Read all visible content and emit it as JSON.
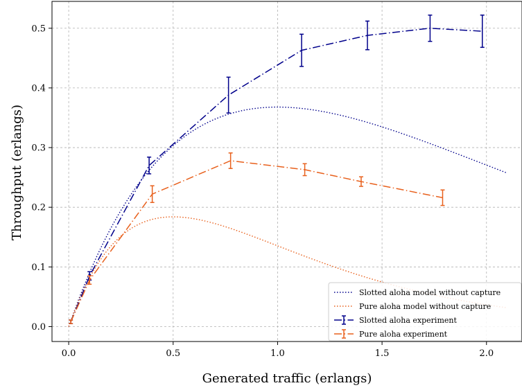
{
  "chart_data": {
    "type": "line",
    "xlabel": "Generated traffic (erlangs)",
    "ylabel": "Throughput (erlangs)",
    "xlim": [
      -0.08,
      2.17
    ],
    "ylim": [
      -0.025,
      0.545
    ],
    "xticks": [
      0.0,
      0.5,
      1.0,
      1.5,
      2.0
    ],
    "xtick_labels": [
      "0.0",
      "0.5",
      "1.0",
      "1.5",
      "2.0"
    ],
    "yticks": [
      0.0,
      0.1,
      0.2,
      0.3,
      0.4,
      0.5
    ],
    "ytick_labels": [
      "0.0",
      "0.1",
      "0.2",
      "0.3",
      "0.4",
      "0.5"
    ],
    "grid": true,
    "legend_position": "bottom-right",
    "series": [
      {
        "name": "Slotted aloha model without capture",
        "kind": "model",
        "formula": "G*exp(-G)",
        "x_range": [
          0.0,
          2.1
        ],
        "color": "#00008b",
        "style": "dotted"
      },
      {
        "name": "Pure aloha model without capture",
        "kind": "model",
        "formula": "G*exp(-2G)",
        "x_range": [
          0.0,
          2.1
        ],
        "color": "#e8601c",
        "style": "dotted"
      },
      {
        "name": "Slotted aloha experiment",
        "kind": "experiment",
        "color": "#00008b",
        "style": "dashdot",
        "x": [
          0.01,
          0.1,
          0.385,
          0.765,
          1.115,
          1.43,
          1.73,
          1.98
        ],
        "y": [
          0.008,
          0.085,
          0.27,
          0.388,
          0.463,
          0.488,
          0.5,
          0.495
        ],
        "yerr": [
          0.003,
          0.007,
          0.014,
          0.03,
          0.027,
          0.024,
          0.022,
          0.027
        ]
      },
      {
        "name": "Pure aloha experiment",
        "kind": "experiment",
        "color": "#e8601c",
        "style": "dashdot",
        "x": [
          0.01,
          0.1,
          0.4,
          0.775,
          1.13,
          1.4,
          1.79
        ],
        "y": [
          0.008,
          0.078,
          0.222,
          0.278,
          0.263,
          0.243,
          0.216
        ],
        "yerr": [
          0.003,
          0.007,
          0.014,
          0.013,
          0.01,
          0.008,
          0.013
        ]
      }
    ]
  }
}
